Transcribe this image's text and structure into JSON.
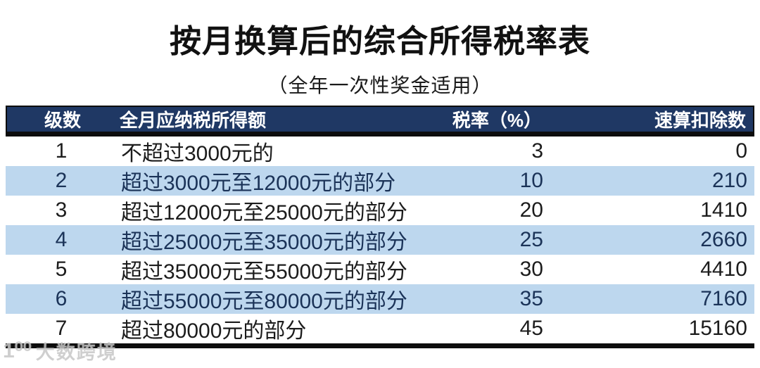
{
  "page": {
    "title": "按月换算后的综合所得税率表",
    "subtitle": "（全年一次性奖金适用）"
  },
  "table": {
    "columns": [
      "级数",
      "全月应纳税所得额",
      "税率（%）",
      "速算扣除数"
    ],
    "rows": [
      {
        "level": "1",
        "bracket": "不超过3000元的",
        "rate": "3",
        "deduction": "0"
      },
      {
        "level": "2",
        "bracket": "超过3000元至12000元的部分",
        "rate": "10",
        "deduction": "210"
      },
      {
        "level": "3",
        "bracket": "超过12000元至25000元的部分",
        "rate": "20",
        "deduction": "1410"
      },
      {
        "level": "4",
        "bracket": "超过25000元至35000元的部分",
        "rate": "25",
        "deduction": "2660"
      },
      {
        "level": "5",
        "bracket": "超过35000元至55000元的部分",
        "rate": "30",
        "deduction": "4410"
      },
      {
        "level": "6",
        "bracket": "超过55000元至80000元的部分",
        "rate": "35",
        "deduction": "7160"
      },
      {
        "level": "7",
        "bracket": "超过80000元的部分",
        "rate": "45",
        "deduction": "15160"
      }
    ]
  },
  "watermark": {
    "logo": "1⁰⁰",
    "text": "大数跨境"
  },
  "colors": {
    "header_bg": "#1f3864",
    "stripe_blue": "#bdd7ee",
    "rule_black": "#0d0d0d"
  }
}
